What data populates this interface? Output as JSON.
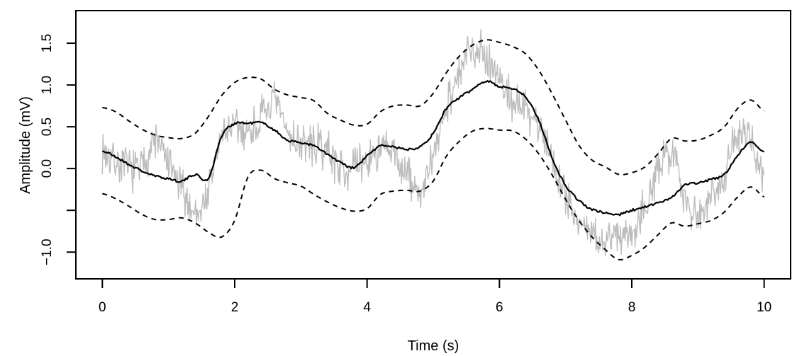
{
  "figure": {
    "background": "#ffffff",
    "xlabel": "Time (s)",
    "ylabel": "Amplitude (mV)"
  },
  "chart_data": {
    "type": "line",
    "title": "",
    "xlabel": "Time (s)",
    "ylabel": "Amplitude (mV)",
    "xlim": [
      -0.4,
      10.4
    ],
    "ylim": [
      -1.32,
      1.89
    ],
    "grid": false,
    "legend": "none",
    "x_ticks": [
      {
        "value": 0,
        "label": "0"
      },
      {
        "value": 2,
        "label": "2"
      },
      {
        "value": 4,
        "label": "4"
      },
      {
        "value": 6,
        "label": "6"
      },
      {
        "value": 8,
        "label": "8"
      },
      {
        "value": 10,
        "label": "10"
      }
    ],
    "y_ticks": [
      {
        "value": 1.5,
        "label": "1.5"
      },
      {
        "value": 1.0,
        "label": "1.0"
      },
      {
        "value": 0.5,
        "label": "0.5"
      },
      {
        "value": 0.0,
        "label": "0.0"
      },
      {
        "value": -0.5,
        "label": ""
      },
      {
        "value": -1.0,
        "label": "−1.0"
      }
    ],
    "x_start": 0,
    "x_step": 0.2,
    "x_end": 10,
    "series": [
      {
        "name": "raw-signal",
        "description": "noisy raw trace (smoothed mean + slow deviation + fast noise)",
        "color": "#bdbdbd",
        "style": "solid",
        "deviation_from_mean": [
          0.0,
          -0.05,
          -0.05,
          0.05,
          0.42,
          0.15,
          -0.1,
          -0.45,
          -0.15,
          0.0,
          -0.05,
          -0.1,
          0.05,
          0.32,
          0.1,
          0.0,
          0.0,
          0.05,
          -0.05,
          0.0,
          -0.05,
          -0.05,
          -0.1,
          -0.3,
          -0.55,
          -0.3,
          0.05,
          0.28,
          0.5,
          0.3,
          0.1,
          -0.15,
          -0.15,
          -0.05,
          0.0,
          -0.1,
          -0.25,
          -0.3,
          -0.35,
          -0.22,
          -0.25,
          0.05,
          0.35,
          0.55,
          -0.1,
          -0.4,
          -0.15,
          0.0,
          0.25,
          0.0,
          -0.3
        ],
        "noise_amplitude": 0.13
      },
      {
        "name": "smoothed-mean",
        "description": "smoothed signal (solid black)",
        "color": "#000000",
        "style": "solid",
        "values": [
          0.21,
          0.14,
          0.05,
          -0.03,
          -0.09,
          -0.12,
          -0.15,
          -0.07,
          -0.12,
          0.38,
          0.54,
          0.54,
          0.55,
          0.46,
          0.34,
          0.31,
          0.27,
          0.17,
          0.07,
          0.01,
          0.15,
          0.27,
          0.26,
          0.23,
          0.27,
          0.42,
          0.72,
          0.85,
          0.95,
          1.05,
          0.98,
          0.96,
          0.85,
          0.57,
          0.12,
          -0.2,
          -0.38,
          -0.49,
          -0.53,
          -0.55,
          -0.5,
          -0.46,
          -0.41,
          -0.34,
          -0.2,
          -0.17,
          -0.13,
          -0.07,
          0.16,
          0.31,
          0.2
        ]
      },
      {
        "name": "upper-band",
        "description": "upper confidence band (dashed black)",
        "color": "#000000",
        "style": "dashed",
        "values": [
          0.73,
          0.68,
          0.57,
          0.47,
          0.4,
          0.37,
          0.36,
          0.42,
          0.62,
          0.87,
          1.03,
          1.09,
          1.07,
          0.95,
          0.88,
          0.85,
          0.81,
          0.66,
          0.58,
          0.52,
          0.53,
          0.68,
          0.75,
          0.76,
          0.75,
          0.9,
          1.15,
          1.35,
          1.48,
          1.54,
          1.51,
          1.46,
          1.37,
          1.17,
          0.89,
          0.58,
          0.28,
          0.1,
          0.02,
          -0.07,
          -0.05,
          0.02,
          0.18,
          0.36,
          0.33,
          0.34,
          0.4,
          0.5,
          0.72,
          0.82,
          0.69
        ]
      },
      {
        "name": "lower-band",
        "description": "lower confidence band (dashed black)",
        "color": "#000000",
        "style": "dashed",
        "values": [
          -0.3,
          -0.36,
          -0.45,
          -0.55,
          -0.61,
          -0.61,
          -0.59,
          -0.65,
          -0.76,
          -0.82,
          -0.62,
          -0.1,
          -0.02,
          -0.12,
          -0.17,
          -0.21,
          -0.31,
          -0.4,
          -0.47,
          -0.51,
          -0.48,
          -0.31,
          -0.27,
          -0.26,
          -0.27,
          -0.15,
          0.15,
          0.33,
          0.45,
          0.48,
          0.46,
          0.45,
          0.35,
          0.17,
          -0.08,
          -0.37,
          -0.62,
          -0.82,
          -0.97,
          -1.09,
          -1.04,
          -0.94,
          -0.79,
          -0.65,
          -0.69,
          -0.66,
          -0.62,
          -0.52,
          -0.34,
          -0.22,
          -0.34
        ]
      }
    ]
  }
}
